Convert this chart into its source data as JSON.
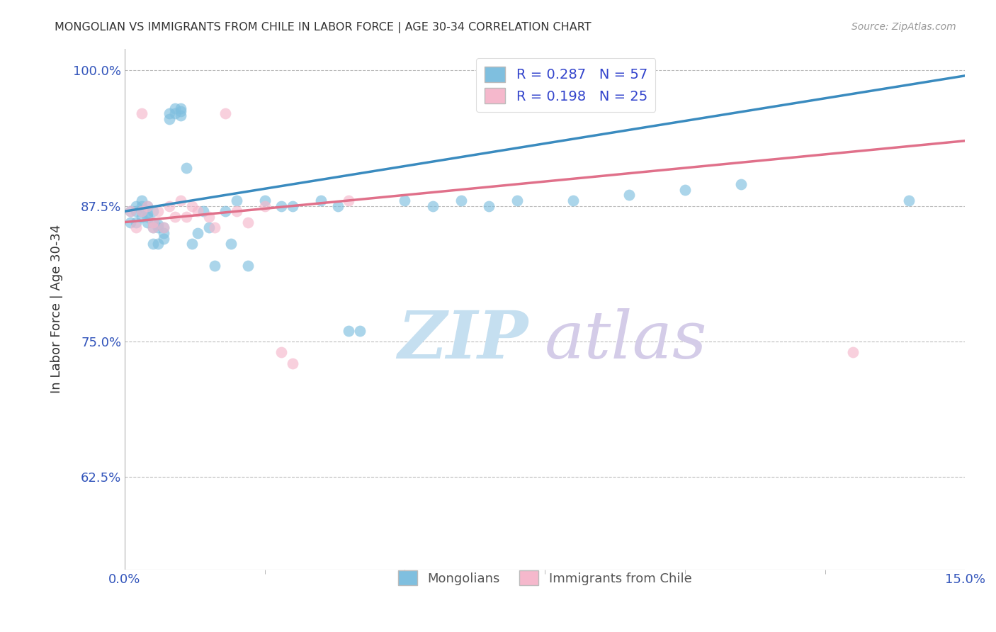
{
  "title": "MONGOLIAN VS IMMIGRANTS FROM CHILE IN LABOR FORCE | AGE 30-34 CORRELATION CHART",
  "source": "Source: ZipAtlas.com",
  "ylabel": "In Labor Force | Age 30-34",
  "xlim": [
    0.0,
    0.15
  ],
  "ylim": [
    0.54,
    1.02
  ],
  "yticks": [
    0.625,
    0.75,
    0.875,
    1.0
  ],
  "ytick_labels": [
    "62.5%",
    "75.0%",
    "87.5%",
    "100.0%"
  ],
  "mongolian_color": "#7fbfdf",
  "chile_color": "#f5b8cc",
  "mongolian_line_color": "#3a8bbf",
  "chile_line_color": "#e0708a",
  "r_mongolian": 0.287,
  "n_mongolian": 57,
  "r_chile": 0.198,
  "n_chile": 25,
  "legend_label_1": "Mongolians",
  "legend_label_2": "Immigrants from Chile",
  "watermark_zip": "ZIP",
  "watermark_atlas": "atlas",
  "watermark_color_zip": "#c8dff0",
  "watermark_color_atlas": "#d0c8f0",
  "grid_color": "#bbbbbb",
  "title_color": "#333333",
  "axis_label_color": "#3355bb",
  "mongolians_x": [
    0.001,
    0.001,
    0.002,
    0.002,
    0.002,
    0.003,
    0.003,
    0.003,
    0.003,
    0.004,
    0.004,
    0.004,
    0.004,
    0.005,
    0.005,
    0.005,
    0.005,
    0.006,
    0.006,
    0.006,
    0.007,
    0.007,
    0.007,
    0.008,
    0.008,
    0.009,
    0.009,
    0.01,
    0.01,
    0.01,
    0.011,
    0.012,
    0.013,
    0.014,
    0.015,
    0.016,
    0.018,
    0.019,
    0.02,
    0.022,
    0.025,
    0.028,
    0.03,
    0.035,
    0.038,
    0.04,
    0.042,
    0.05,
    0.055,
    0.06,
    0.065,
    0.07,
    0.08,
    0.09,
    0.1,
    0.11,
    0.14
  ],
  "mongolians_y": [
    0.87,
    0.86,
    0.875,
    0.86,
    0.87,
    0.875,
    0.88,
    0.87,
    0.865,
    0.875,
    0.865,
    0.868,
    0.86,
    0.87,
    0.855,
    0.84,
    0.86,
    0.855,
    0.858,
    0.84,
    0.85,
    0.855,
    0.845,
    0.96,
    0.955,
    0.965,
    0.96,
    0.965,
    0.958,
    0.962,
    0.91,
    0.84,
    0.85,
    0.87,
    0.855,
    0.82,
    0.87,
    0.84,
    0.88,
    0.82,
    0.88,
    0.875,
    0.875,
    0.88,
    0.875,
    0.76,
    0.76,
    0.88,
    0.875,
    0.88,
    0.875,
    0.88,
    0.88,
    0.885,
    0.89,
    0.895,
    0.88
  ],
  "chile_x": [
    0.001,
    0.002,
    0.003,
    0.003,
    0.004,
    0.005,
    0.005,
    0.006,
    0.007,
    0.008,
    0.009,
    0.01,
    0.011,
    0.012,
    0.013,
    0.015,
    0.016,
    0.018,
    0.02,
    0.022,
    0.025,
    0.028,
    0.03,
    0.04,
    0.13
  ],
  "chile_y": [
    0.87,
    0.855,
    0.96,
    0.87,
    0.875,
    0.855,
    0.86,
    0.87,
    0.855,
    0.875,
    0.865,
    0.88,
    0.865,
    0.875,
    0.87,
    0.865,
    0.855,
    0.96,
    0.87,
    0.86,
    0.875,
    0.74,
    0.73,
    0.88,
    0.74
  ]
}
